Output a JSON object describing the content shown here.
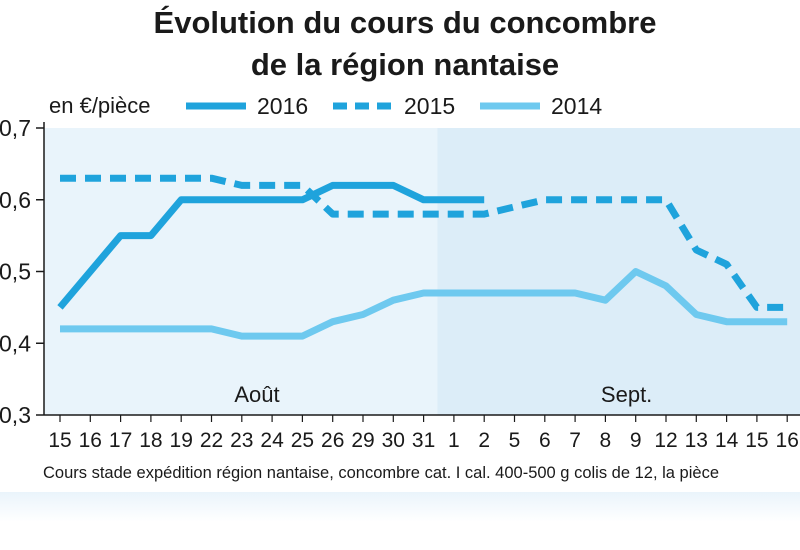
{
  "title_line1": "Évolution du cours du concombre",
  "title_line2": "de la région nantaise",
  "colors": {
    "s2016": "#1fa3dc",
    "s2015": "#1fa3dc",
    "s2014": "#6ec9ef",
    "bg_left": "#e9f4fb",
    "bg_right": "#dcedf8",
    "axis": "#1a1a1a"
  },
  "chart_data": {
    "type": "line",
    "unit_label": "en €/pièce",
    "x": [
      "15",
      "16",
      "17",
      "18",
      "19",
      "22",
      "23",
      "24",
      "25",
      "26",
      "29",
      "30",
      "31",
      "1",
      "2",
      "5",
      "6",
      "7",
      "8",
      "9",
      "12",
      "13",
      "14",
      "15",
      "16"
    ],
    "months": [
      {
        "label": "Août",
        "from": "15",
        "to": "31"
      },
      {
        "label": "Sept.",
        "from": "1",
        "to": "16"
      }
    ],
    "ylim": [
      0.3,
      0.7
    ],
    "yticks": [
      0.3,
      0.4,
      0.5,
      0.6,
      0.7
    ],
    "ytick_labels": [
      "0,3",
      "0,4",
      "0,5",
      "0,6",
      "0,7"
    ],
    "series": [
      {
        "name": "2016",
        "style": "solid",
        "values": [
          0.45,
          0.5,
          0.55,
          0.55,
          0.6,
          0.6,
          0.6,
          0.6,
          0.6,
          0.62,
          0.62,
          0.62,
          0.6,
          0.6,
          0.6,
          null,
          null,
          null,
          null,
          null,
          null,
          null,
          null,
          null,
          null
        ]
      },
      {
        "name": "2015",
        "style": "dashed",
        "values": [
          0.63,
          0.63,
          0.63,
          0.63,
          0.63,
          0.63,
          0.62,
          0.62,
          0.62,
          0.58,
          0.58,
          0.58,
          0.58,
          0.58,
          0.58,
          0.59,
          0.6,
          0.6,
          0.6,
          0.6,
          0.6,
          0.53,
          0.51,
          0.45,
          0.45
        ]
      },
      {
        "name": "2014",
        "style": "light",
        "values": [
          0.42,
          0.42,
          0.42,
          0.42,
          0.42,
          0.42,
          0.41,
          0.41,
          0.41,
          0.43,
          0.44,
          0.46,
          0.47,
          0.47,
          0.47,
          0.47,
          0.47,
          0.47,
          0.46,
          0.5,
          0.48,
          0.44,
          0.43,
          0.43,
          0.43
        ]
      }
    ],
    "footnote": "Cours stade expédition région nantaise, concombre cat. I cal. 400-500 g colis de 12, la pièce",
    "grid": false,
    "legend": "top"
  }
}
